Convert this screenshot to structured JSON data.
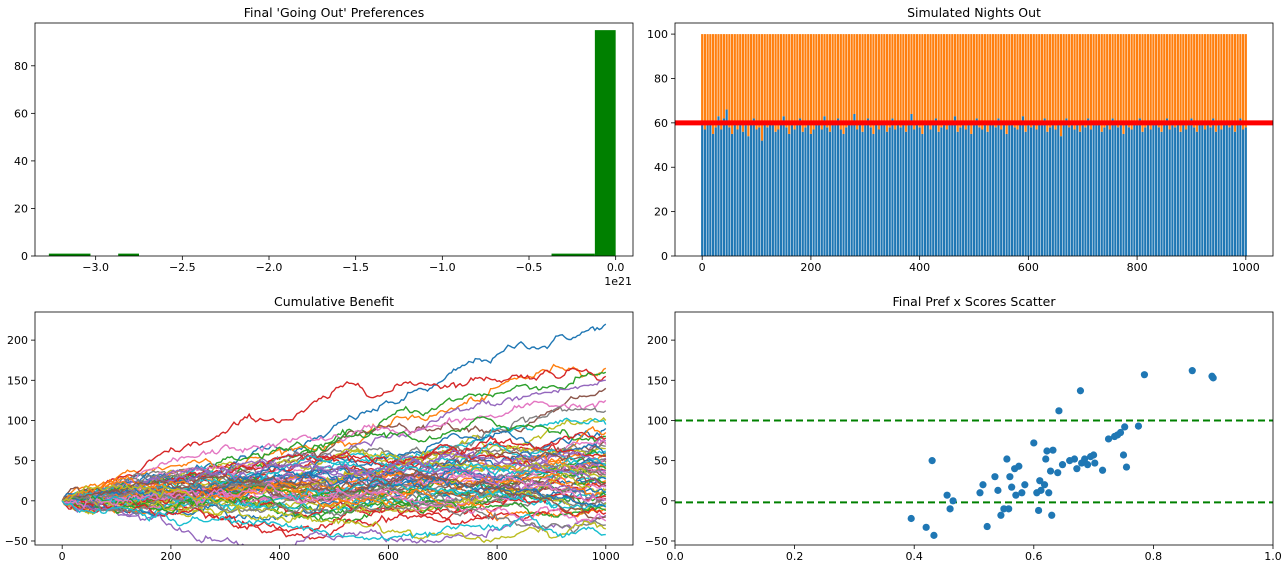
{
  "chart_data": [
    {
      "type": "bar",
      "title": "Final 'Going Out' Preferences",
      "xlabel": "",
      "ylabel": "",
      "offset_label": "1e21",
      "xlim": [
        -3.35,
        0.1
      ],
      "ylim": [
        0,
        98
      ],
      "x_ticks": [
        -3.0,
        -2.5,
        -2.0,
        -1.5,
        -1.0,
        -0.5,
        0.0
      ],
      "x_tick_labels": [
        "−3.0",
        "−2.5",
        "−2.0",
        "−1.5",
        "−1.0",
        "−0.5",
        "0.0"
      ],
      "y_ticks": [
        0,
        20,
        40,
        60,
        80
      ],
      "bins": [
        {
          "x0": -3.27,
          "x1": -3.03,
          "count": 1
        },
        {
          "x0": -2.87,
          "x1": -2.75,
          "count": 1
        },
        {
          "x0": -0.37,
          "x1": -0.12,
          "count": 1
        },
        {
          "x0": -0.12,
          "x1": 0.0,
          "count": 95
        }
      ],
      "color": "#008000",
      "grid": false
    },
    {
      "type": "bar",
      "title": "Simulated Nights Out",
      "xlabel": "",
      "ylabel": "",
      "xlim": [
        -50,
        1050
      ],
      "ylim": [
        0,
        105
      ],
      "x_ticks": [
        0,
        200,
        400,
        600,
        800,
        1000
      ],
      "y_ticks": [
        0,
        20,
        40,
        60,
        80,
        100
      ],
      "stacked_total": 100,
      "threshold": 60,
      "colors": {
        "bottom": "#1f77b4",
        "top": "#ff7f0e",
        "threshold": "#ff0000"
      },
      "bar_x_start": 0,
      "bar_x_step": 5,
      "bottom_values": [
        60,
        57,
        59,
        61,
        55,
        58,
        63,
        57,
        62,
        66,
        58,
        55,
        60,
        57,
        61,
        56,
        59,
        54,
        60,
        62,
        57,
        58,
        52,
        60,
        58,
        61,
        59,
        56,
        57,
        60,
        63,
        58,
        55,
        61,
        57,
        59,
        62,
        56,
        58,
        60,
        55,
        57,
        61,
        59,
        57,
        63,
        58,
        56,
        60,
        59,
        62,
        57,
        55,
        58,
        61,
        59,
        64,
        57,
        60,
        56,
        59,
        62,
        58,
        55,
        60,
        57,
        61,
        59,
        56,
        58,
        62,
        57,
        60,
        58,
        61,
        56,
        59,
        64,
        57,
        60,
        58,
        55,
        61,
        59,
        57,
        60,
        62,
        56,
        58,
        61,
        57,
        59,
        60,
        63,
        56,
        58,
        60,
        57,
        61,
        55,
        59,
        62,
        58,
        57,
        60,
        56,
        61,
        59,
        58,
        62,
        57,
        60,
        55,
        59,
        61,
        58,
        57,
        60,
        63,
        56,
        59,
        58,
        61,
        57,
        60,
        59,
        62,
        56,
        58,
        61,
        57,
        60,
        54,
        59,
        62,
        58,
        60,
        57,
        61,
        56,
        59,
        58,
        62,
        57,
        60,
        59,
        61,
        56,
        58,
        60,
        57,
        62,
        59,
        58,
        61,
        55,
        60,
        58,
        57,
        61,
        59,
        62,
        56,
        58,
        60,
        57,
        59,
        61,
        58,
        56,
        60,
        62,
        57,
        59,
        58,
        61,
        56,
        60,
        57,
        59,
        62,
        58,
        56,
        60,
        61,
        57,
        59,
        58,
        62,
        56,
        60,
        57,
        59,
        61,
        58,
        60,
        56,
        59,
        62,
        57,
        58
      ]
    },
    {
      "type": "line",
      "title": "Cumulative Benefit",
      "xlabel": "",
      "ylabel": "",
      "xlim": [
        -50,
        1050
      ],
      "ylim": [
        -55,
        235
      ],
      "x_ticks": [
        0,
        200,
        400,
        600,
        800,
        1000
      ],
      "y_ticks": [
        -50,
        0,
        50,
        100,
        150,
        200
      ],
      "n_steps": 1000,
      "series_final_values": [
        220,
        165,
        160,
        155,
        150,
        140,
        125,
        112,
        100,
        95,
        90,
        85,
        80,
        78,
        75,
        72,
        70,
        68,
        65,
        62,
        60,
        58,
        57,
        55,
        53,
        52,
        50,
        48,
        47,
        45,
        44,
        42,
        40,
        38,
        37,
        35,
        33,
        32,
        30,
        28,
        27,
        25,
        23,
        22,
        20,
        18,
        17,
        15,
        13,
        12,
        10,
        8,
        7,
        5,
        3,
        2,
        0,
        -2,
        -3,
        -5,
        -8,
        -10,
        -12,
        -15,
        -18,
        -20,
        -25,
        -30,
        -35,
        -42
      ],
      "palette": [
        "#1f77b4",
        "#ff7f0e",
        "#2ca02c",
        "#d62728",
        "#9467bd",
        "#8c564b",
        "#e377c2",
        "#7f7f7f",
        "#bcbd22",
        "#17becf"
      ]
    },
    {
      "type": "scatter",
      "title": "Final Pref x Scores Scatter",
      "xlabel": "",
      "ylabel": "",
      "xlim": [
        0.0,
        1.0
      ],
      "ylim": [
        -55,
        235
      ],
      "x_ticks": [
        0.0,
        0.2,
        0.4,
        0.6,
        0.8,
        1.0
      ],
      "x_tick_labels": [
        "0.0",
        "0.2",
        "0.4",
        "0.6",
        "0.8",
        "1.0"
      ],
      "y_ticks": [
        -50,
        0,
        50,
        100,
        150,
        200
      ],
      "hlines": [
        100,
        -2
      ],
      "hline_color": "#008000",
      "point_color": "#1f77b4",
      "points": [
        [
          0.395,
          -22
        ],
        [
          0.42,
          -33
        ],
        [
          0.43,
          50
        ],
        [
          0.433,
          -43
        ],
        [
          0.455,
          7
        ],
        [
          0.46,
          -10
        ],
        [
          0.465,
          0
        ],
        [
          0.51,
          10
        ],
        [
          0.515,
          20
        ],
        [
          0.522,
          -32
        ],
        [
          0.535,
          30
        ],
        [
          0.54,
          13
        ],
        [
          0.545,
          -18
        ],
        [
          0.55,
          -10
        ],
        [
          0.555,
          52
        ],
        [
          0.558,
          -10
        ],
        [
          0.56,
          30
        ],
        [
          0.563,
          17
        ],
        [
          0.568,
          40
        ],
        [
          0.57,
          7
        ],
        [
          0.575,
          43
        ],
        [
          0.58,
          10
        ],
        [
          0.585,
          20
        ],
        [
          0.6,
          72
        ],
        [
          0.605,
          10
        ],
        [
          0.608,
          -12
        ],
        [
          0.61,
          25
        ],
        [
          0.612,
          13
        ],
        [
          0.618,
          20
        ],
        [
          0.62,
          52
        ],
        [
          0.622,
          62
        ],
        [
          0.625,
          10
        ],
        [
          0.628,
          37
        ],
        [
          0.63,
          -18
        ],
        [
          0.632,
          63
        ],
        [
          0.64,
          35
        ],
        [
          0.642,
          112
        ],
        [
          0.648,
          45
        ],
        [
          0.66,
          50
        ],
        [
          0.668,
          52
        ],
        [
          0.672,
          40
        ],
        [
          0.678,
          137
        ],
        [
          0.68,
          47
        ],
        [
          0.685,
          52
        ],
        [
          0.69,
          45
        ],
        [
          0.695,
          55
        ],
        [
          0.7,
          57
        ],
        [
          0.702,
          47
        ],
        [
          0.715,
          38
        ],
        [
          0.725,
          77
        ],
        [
          0.735,
          80
        ],
        [
          0.74,
          82
        ],
        [
          0.745,
          85
        ],
        [
          0.75,
          57
        ],
        [
          0.752,
          92
        ],
        [
          0.755,
          42
        ],
        [
          0.775,
          93
        ],
        [
          0.785,
          157
        ],
        [
          0.865,
          162
        ],
        [
          0.898,
          155
        ],
        [
          0.9,
          153
        ]
      ]
    }
  ]
}
